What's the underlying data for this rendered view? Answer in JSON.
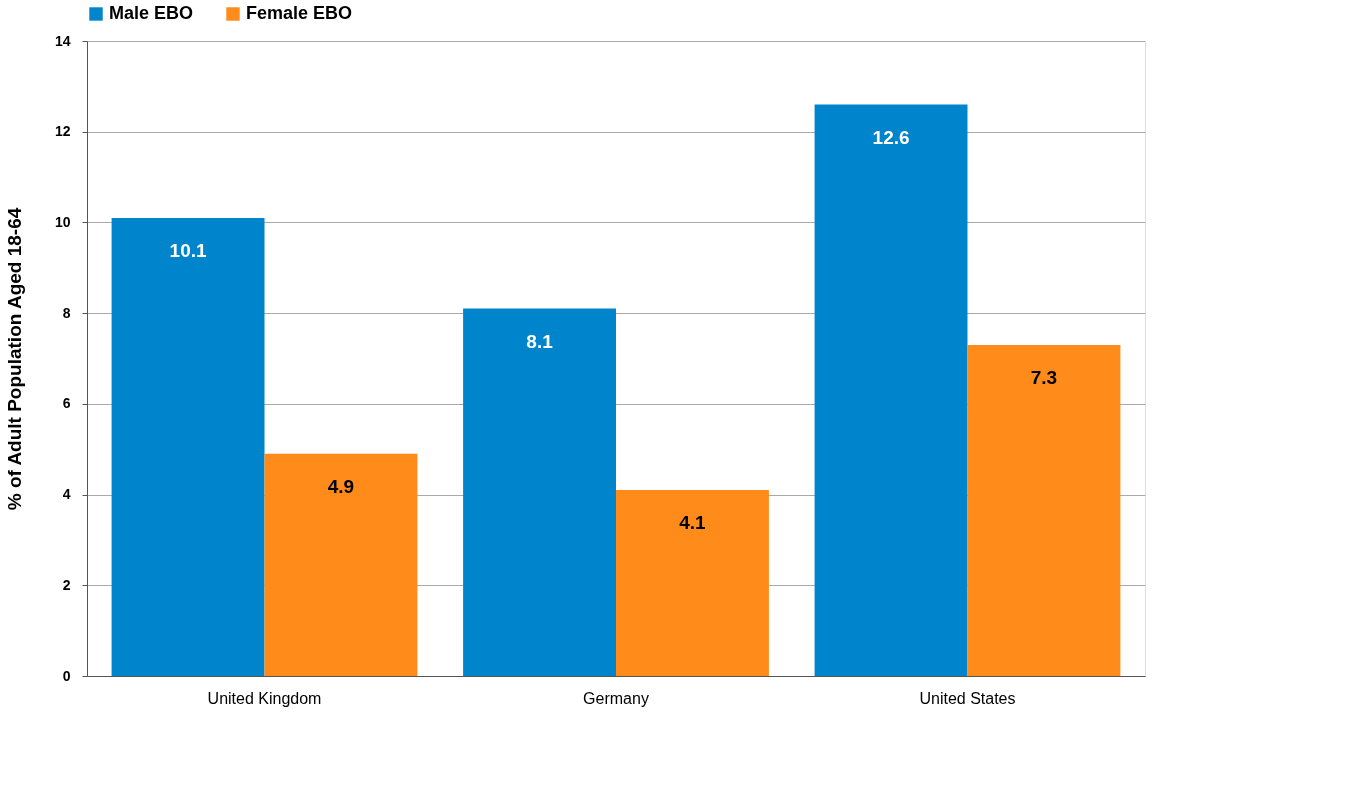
{
  "chart_data": {
    "type": "bar",
    "ylabel": "% of Adult Population Aged 18-64",
    "categories": [
      "United Kingdom",
      "Germany",
      "United States"
    ],
    "series": [
      {
        "name": "Male EBO",
        "color": "#0084cc",
        "values": [
          10.1,
          8.1,
          12.6
        ]
      },
      {
        "name": "Female EBO",
        "color": "#ff8c1a",
        "values": [
          4.9,
          4.1,
          7.3
        ]
      }
    ],
    "ylim": [
      0,
      14
    ],
    "yticks": [
      0,
      2,
      4,
      6,
      8,
      10,
      12,
      14
    ],
    "grid": "y",
    "legend": "top",
    "data_labels": true
  }
}
